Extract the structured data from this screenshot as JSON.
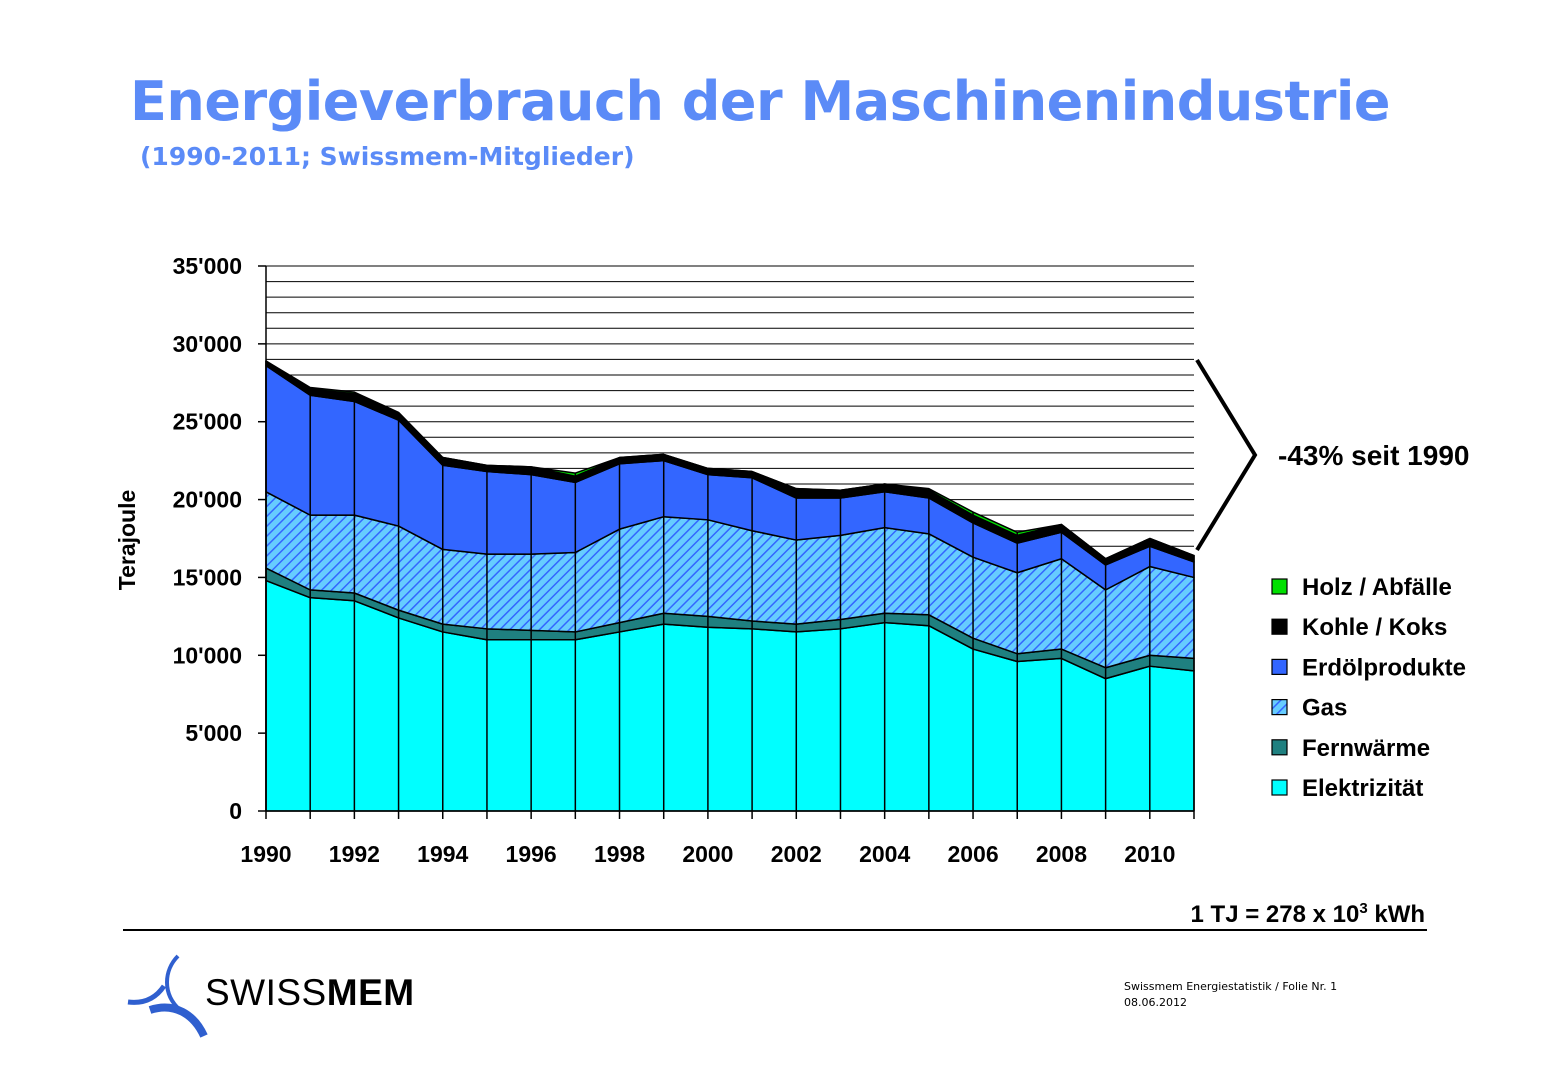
{
  "slide": {
    "title": "Energieverbrauch der Maschinenindustrie",
    "subtitle": "(1990-2011; Swissmem-Mitglieder)",
    "conversion_prefix": "1 TJ = 278 x 10",
    "conversion_exponent": "3",
    "conversion_suffix": " kWh",
    "logo_text_regular": "SWISS",
    "logo_text_bold": "MEM",
    "footer_line1": "Swissmem Energiestatistik / Folie Nr. 1",
    "footer_line2": "08.06.2012"
  },
  "colors": {
    "title": "#5B8BF7",
    "elektrizitaet": "#00FFFF",
    "fernwaerme": "#1F8080",
    "gas_base": "#66CCFF",
    "gas_hatch": "#3366FF",
    "erdoel": "#3366FF",
    "kohle": "#000000",
    "holz": "#00E000"
  },
  "chart_data": {
    "type": "area",
    "stacked": true,
    "ylabel": "Terajoule",
    "ylim": [
      0,
      35000
    ],
    "ytick_labels": [
      "0",
      "5'000",
      "10'000",
      "15'000",
      "20'000",
      "25'000",
      "30'000",
      "35'000"
    ],
    "xtick_labels": [
      "1990",
      "1992",
      "1994",
      "1996",
      "1998",
      "2000",
      "2002",
      "2004",
      "2006",
      "2008",
      "2010"
    ],
    "grid": "horizontal lines every 1000 above 17000",
    "legend_position": "right",
    "x": [
      1990,
      1991,
      1992,
      1993,
      1994,
      1995,
      1996,
      1997,
      1998,
      1999,
      2000,
      2001,
      2002,
      2003,
      2004,
      2005,
      2006,
      2007,
      2008,
      2009,
      2010,
      2011
    ],
    "series": [
      {
        "name": "Elektrizität",
        "values": [
          14800,
          13700,
          13500,
          12400,
          11500,
          11000,
          11000,
          11000,
          11500,
          12000,
          11800,
          11700,
          11500,
          11700,
          12100,
          11900,
          10400,
          9600,
          9800,
          8500,
          9300,
          9000
        ]
      },
      {
        "name": "Fernwärme",
        "values": [
          800,
          500,
          500,
          500,
          500,
          700,
          600,
          500,
          600,
          700,
          700,
          500,
          500,
          600,
          600,
          700,
          700,
          500,
          600,
          700,
          700,
          800
        ]
      },
      {
        "name": "Gas",
        "values": [
          4900,
          4800,
          5000,
          5400,
          4800,
          4800,
          4900,
          5100,
          6000,
          6200,
          6200,
          5800,
          5400,
          5400,
          5500,
          5200,
          5200,
          5200,
          5800,
          5000,
          5700,
          5200
        ]
      },
      {
        "name": "Erdölprodukte",
        "values": [
          8100,
          7700,
          7300,
          6800,
          5400,
          5300,
          5100,
          4500,
          4200,
          3600,
          2900,
          3400,
          2700,
          2400,
          2300,
          2300,
          2200,
          1900,
          1700,
          1600,
          1300,
          1000
        ]
      },
      {
        "name": "Kohle / Koks",
        "values": [
          300,
          400,
          500,
          400,
          500,
          400,
          500,
          400,
          400,
          400,
          400,
          400,
          600,
          500,
          500,
          500,
          500,
          500,
          500,
          400,
          500,
          400
        ]
      },
      {
        "name": "Holz / Abfälle",
        "values": [
          0,
          100,
          100,
          100,
          0,
          0,
          0,
          200,
          0,
          0,
          0,
          0,
          0,
          0,
          0,
          100,
          200,
          200,
          0,
          0,
          0,
          0
        ]
      }
    ],
    "legend_order": [
      "Holz / Abfälle",
      "Kohle / Koks",
      "Erdölprodukte",
      "Gas",
      "Fernwärme",
      "Elektrizität"
    ],
    "annotation": "-43% seit 1990"
  }
}
